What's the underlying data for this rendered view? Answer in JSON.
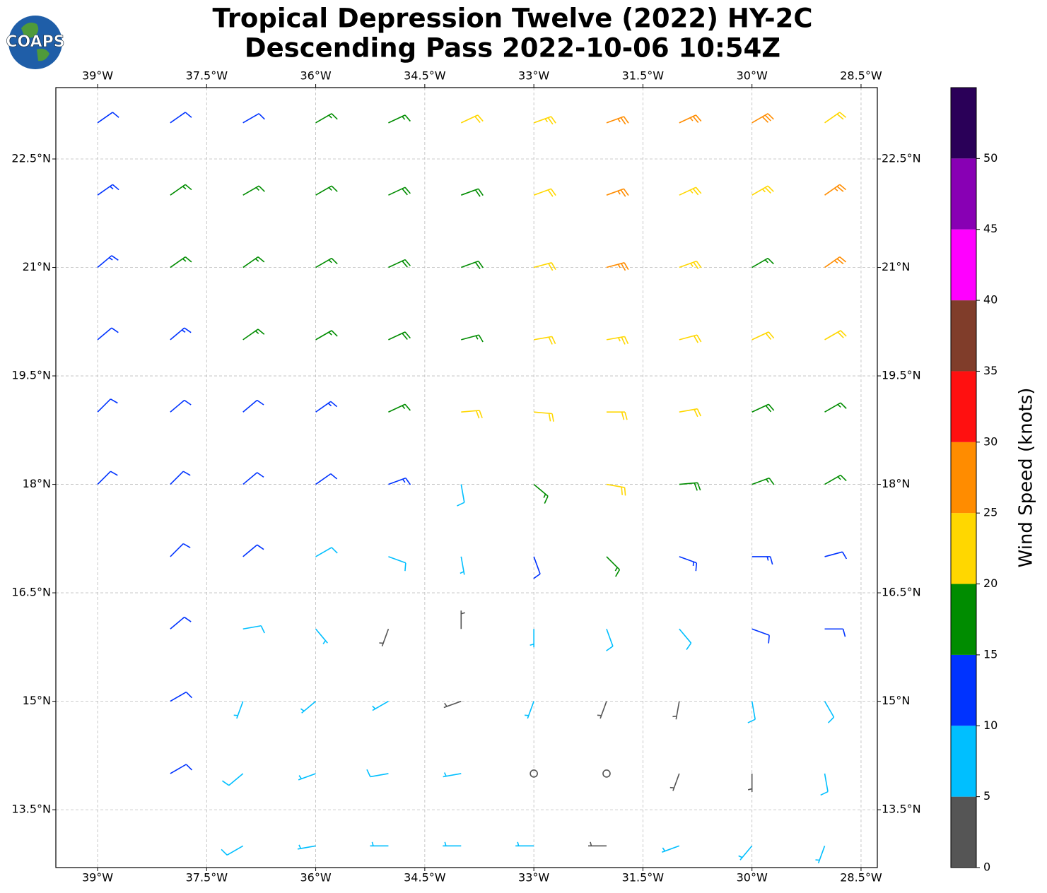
{
  "chart_data": {
    "type": "barbs",
    "logo_text": "COAPS",
    "title": "Tropical Depression Twelve (2022) HY-2C",
    "subtitle": "Descending Pass 2022-10-06 10:54Z",
    "xlim": [
      -39.574,
      -28.276
    ],
    "ylim": [
      12.7,
      23.487
    ],
    "xticks": [
      {
        "value": -39,
        "label": "39°W"
      },
      {
        "value": -37.5,
        "label": "37.5°W"
      },
      {
        "value": -36,
        "label": "36°W"
      },
      {
        "value": -34.5,
        "label": "34.5°W"
      },
      {
        "value": -33,
        "label": "33°W"
      },
      {
        "value": -31.5,
        "label": "31.5°W"
      },
      {
        "value": -30,
        "label": "30°W"
      },
      {
        "value": -28.5,
        "label": "28.5°W"
      }
    ],
    "yticks": [
      {
        "value": 13.5,
        "label": "13.5°N"
      },
      {
        "value": 15,
        "label": "15°N"
      },
      {
        "value": 16.5,
        "label": "16.5°N"
      },
      {
        "value": 18,
        "label": "18°N"
      },
      {
        "value": 19.5,
        "label": "19.5°N"
      },
      {
        "value": 21,
        "label": "21°N"
      },
      {
        "value": 22.5,
        "label": "22.5°N"
      }
    ],
    "grid": true,
    "colorbar": {
      "label": "Wind Speed (knots)",
      "lim": [
        0,
        55
      ],
      "ticks": [
        0,
        5,
        10,
        15,
        20,
        25,
        30,
        35,
        40,
        45,
        50
      ],
      "bounds": [
        0,
        5,
        10,
        15,
        20,
        25,
        30,
        35,
        40,
        45,
        50,
        55
      ],
      "colors": [
        "#555555",
        "#00bfff",
        "#0033ff",
        "#008c00",
        "#ffd700",
        "#ff8c00",
        "#ff1010",
        "#803d2a",
        "#ff00ff",
        "#8800b4",
        "#2a0058"
      ]
    },
    "barbs": [
      {
        "lat": 23,
        "lon": [
          -39,
          -38,
          -37,
          -36,
          -35,
          -34,
          -33,
          -32,
          -31,
          -30,
          -29
        ],
        "speed": [
          12,
          12,
          12,
          17,
          17,
          22,
          23,
          27,
          27,
          28,
          22
        ],
        "direction": [
          55,
          55,
          60,
          60,
          65,
          65,
          70,
          70,
          65,
          60,
          55
        ]
      },
      {
        "lat": 22,
        "lon": [
          -39,
          -38,
          -37,
          -36,
          -35,
          -34,
          -33,
          -32,
          -31,
          -30,
          -29
        ],
        "speed": [
          13,
          16,
          17,
          17,
          18,
          19,
          22,
          26,
          23,
          24,
          27
        ],
        "direction": [
          55,
          55,
          60,
          60,
          65,
          70,
          70,
          70,
          65,
          60,
          55
        ]
      },
      {
        "lat": 21,
        "lon": [
          -39,
          -38,
          -37,
          -36,
          -35,
          -34,
          -33,
          -32,
          -31,
          -30,
          -29
        ],
        "speed": [
          13,
          16,
          17,
          17,
          18,
          19,
          22,
          27,
          23,
          17,
          26
        ],
        "direction": [
          50,
          55,
          55,
          60,
          65,
          70,
          75,
          75,
          70,
          60,
          55
        ]
      },
      {
        "lat": 20,
        "lon": [
          -39,
          -38,
          -37,
          -36,
          -35,
          -34,
          -33,
          -32,
          -31,
          -30,
          -29
        ],
        "speed": [
          11,
          14,
          16,
          17,
          18,
          17,
          22,
          23,
          22,
          22,
          22
        ],
        "direction": [
          50,
          50,
          55,
          60,
          65,
          75,
          80,
          80,
          75,
          65,
          60
        ]
      },
      {
        "lat": 19,
        "lon": [
          -39,
          -38,
          -37,
          -36,
          -35,
          -34,
          -33,
          -32,
          -31,
          -30,
          -29
        ],
        "speed": [
          11,
          12,
          12,
          13,
          16,
          22,
          22,
          22,
          22,
          18,
          17
        ],
        "direction": [
          45,
          50,
          50,
          55,
          65,
          85,
          95,
          90,
          80,
          65,
          60
        ]
      },
      {
        "lat": 18,
        "lon": [
          -39,
          -38,
          -37,
          -36,
          -35,
          -34,
          -33,
          -32,
          -31,
          -30,
          -29
        ],
        "speed": [
          11,
          11,
          12,
          12,
          14,
          9,
          17,
          22,
          19,
          17,
          16
        ],
        "direction": [
          45,
          45,
          50,
          55,
          70,
          170,
          130,
          100,
          85,
          70,
          60
        ]
      },
      {
        "lat": 17,
        "lon": [
          -38,
          -37,
          -36,
          -35,
          -34,
          -33,
          -32,
          -31,
          -30,
          -29
        ],
        "speed": [
          12,
          11,
          8,
          8,
          7,
          12,
          16,
          14,
          13,
          12
        ],
        "direction": [
          45,
          50,
          60,
          110,
          170,
          160,
          135,
          110,
          90,
          75
        ]
      },
      {
        "lat": 16,
        "lon": [
          -38,
          -37,
          -36,
          -35,
          -34,
          -33,
          -32,
          -31,
          -30,
          -29
        ],
        "speed": [
          12,
          8,
          7,
          4,
          3,
          6,
          8,
          9,
          11,
          12
        ],
        "direction": [
          50,
          80,
          140,
          200,
          0,
          180,
          160,
          140,
          110,
          90
        ]
      },
      {
        "lat": 15,
        "lon": [
          -38,
          -37,
          -36,
          -35,
          -34,
          -33,
          -32,
          -31,
          -30,
          -29
        ],
        "speed": [
          11,
          7,
          7,
          5,
          4,
          7,
          3,
          4,
          8,
          9
        ],
        "direction": [
          60,
          200,
          230,
          240,
          250,
          200,
          200,
          190,
          170,
          150
        ]
      },
      {
        "lat": 14,
        "lon": [
          -38,
          -37,
          -36,
          -35,
          -34,
          -33,
          -32,
          -31,
          -30,
          -29
        ],
        "speed": [
          11,
          8,
          7,
          8,
          6,
          1,
          2,
          3,
          4,
          8
        ],
        "direction": [
          60,
          230,
          250,
          260,
          260,
          0,
          220,
          200,
          180,
          170
        ]
      },
      {
        "lat": 13,
        "lon": [
          -37,
          -36,
          -35,
          -34,
          -33,
          -32,
          -31,
          -30,
          -29
        ],
        "speed": [
          8,
          7,
          7,
          7,
          6,
          3,
          6,
          6,
          7
        ],
        "direction": [
          240,
          260,
          270,
          270,
          270,
          270,
          250,
          220,
          200
        ]
      }
    ]
  }
}
